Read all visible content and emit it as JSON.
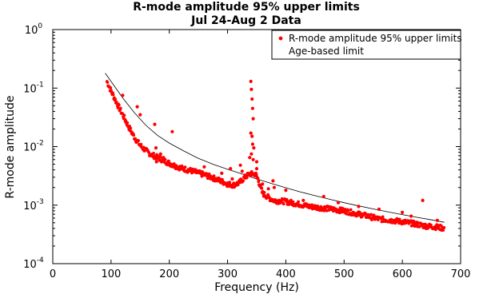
{
  "chart_data": {
    "type": "scatter",
    "title": "R-mode amplitude 95% upper limits",
    "subtitle": "Jul 24-Aug 2 Data",
    "xlabel": "Frequency (Hz)",
    "ylabel": "R-mode amplitude",
    "xlim": [
      0,
      700
    ],
    "ylim": [
      0.0001,
      1
    ],
    "yscale": "log",
    "xticks": [
      "0",
      "100",
      "200",
      "300",
      "400",
      "500",
      "600",
      "700"
    ],
    "yticks": [
      {
        "base": "10",
        "exp": "-4"
      },
      {
        "base": "10",
        "exp": "-3"
      },
      {
        "base": "10",
        "exp": "-2"
      },
      {
        "base": "10",
        "exp": "-1"
      },
      {
        "base": "10",
        "exp": "0"
      }
    ],
    "grid": false,
    "legend_position": "top-right",
    "series": [
      {
        "name": "R-mode amplitude 95% upper limits",
        "marker": "dot",
        "color": "#ff0000",
        "baseline": [
          [
            93,
            0.13
          ],
          [
            100,
            0.09
          ],
          [
            110,
            0.055
          ],
          [
            120,
            0.035
          ],
          [
            130,
            0.022
          ],
          [
            140,
            0.0145
          ],
          [
            150,
            0.0105
          ],
          [
            160,
            0.0085
          ],
          [
            170,
            0.0072
          ],
          [
            180,
            0.0065
          ],
          [
            190,
            0.0058
          ],
          [
            200,
            0.0052
          ],
          [
            210,
            0.0047
          ],
          [
            220,
            0.0043
          ],
          [
            240,
            0.0038
          ],
          [
            260,
            0.0033
          ],
          [
            280,
            0.0028
          ],
          [
            300,
            0.0023
          ],
          [
            310,
            0.0022
          ],
          [
            320,
            0.0024
          ],
          [
            330,
            0.003
          ],
          [
            338,
            0.0034
          ],
          [
            348,
            0.0034
          ],
          [
            352,
            0.0028
          ],
          [
            360,
            0.0016
          ],
          [
            370,
            0.00135
          ],
          [
            380,
            0.0012
          ],
          [
            400,
            0.00115
          ],
          [
            420,
            0.00105
          ],
          [
            440,
            0.00095
          ],
          [
            460,
            0.0009
          ],
          [
            480,
            0.00085
          ],
          [
            500,
            0.0008
          ],
          [
            520,
            0.00072
          ],
          [
            540,
            0.00065
          ],
          [
            560,
            0.00058
          ],
          [
            580,
            0.00055
          ],
          [
            600,
            0.00052
          ],
          [
            620,
            0.00048
          ],
          [
            640,
            0.00044
          ],
          [
            660,
            0.00042
          ],
          [
            672,
            0.0004
          ]
        ],
        "outliers": [
          [
            120,
            0.075
          ],
          [
            145,
            0.048
          ],
          [
            150,
            0.035
          ],
          [
            175,
            0.024
          ],
          [
            177,
            0.0095
          ],
          [
            178,
            0.0055
          ],
          [
            185,
            0.0075
          ],
          [
            190,
            0.0065
          ],
          [
            205,
            0.018
          ],
          [
            260,
            0.0045
          ],
          [
            290,
            0.0035
          ],
          [
            292,
            0.0025
          ],
          [
            305,
            0.0042
          ],
          [
            308,
            0.0028
          ],
          [
            322,
            0.0048
          ],
          [
            325,
            0.0038
          ],
          [
            338,
            0.0065
          ],
          [
            340,
            0.13
          ],
          [
            341,
            0.095
          ],
          [
            342,
            0.065
          ],
          [
            343,
            0.045
          ],
          [
            344,
            0.03
          ],
          [
            340,
            0.017
          ],
          [
            342,
            0.015
          ],
          [
            343,
            0.011
          ],
          [
            345,
            0.0095
          ],
          [
            341,
            0.0075
          ],
          [
            344,
            0.006
          ],
          [
            350,
            0.0055
          ],
          [
            350,
            0.0042
          ],
          [
            360,
            0.0023
          ],
          [
            370,
            0.0019
          ],
          [
            378,
            0.0026
          ],
          [
            380,
            0.002
          ],
          [
            400,
            0.0018
          ],
          [
            430,
            0.0012
          ],
          [
            465,
            0.0014
          ],
          [
            490,
            0.0011
          ],
          [
            525,
            0.00095
          ],
          [
            560,
            0.00085
          ],
          [
            600,
            0.00075
          ],
          [
            615,
            0.00065
          ],
          [
            635,
            0.0012
          ],
          [
            660,
            0.00055
          ]
        ]
      },
      {
        "name": "Age-based limit",
        "marker": "line",
        "color": "#000000",
        "points": [
          [
            90,
            0.18
          ],
          [
            100,
            0.13
          ],
          [
            120,
            0.068
          ],
          [
            140,
            0.038
          ],
          [
            160,
            0.023
          ],
          [
            180,
            0.0155
          ],
          [
            200,
            0.0115
          ],
          [
            225,
            0.0084
          ],
          [
            250,
            0.0063
          ],
          [
            275,
            0.005
          ],
          [
            300,
            0.0041
          ],
          [
            325,
            0.0034
          ],
          [
            350,
            0.0028
          ],
          [
            375,
            0.00235
          ],
          [
            400,
            0.00198
          ],
          [
            425,
            0.00168
          ],
          [
            450,
            0.00145
          ],
          [
            475,
            0.00126
          ],
          [
            500,
            0.0011
          ],
          [
            525,
            0.00097
          ],
          [
            550,
            0.00086
          ],
          [
            575,
            0.00077
          ],
          [
            600,
            0.00069
          ],
          [
            625,
            0.00062
          ],
          [
            650,
            0.00056
          ],
          [
            672,
            0.00051
          ]
        ]
      }
    ]
  }
}
